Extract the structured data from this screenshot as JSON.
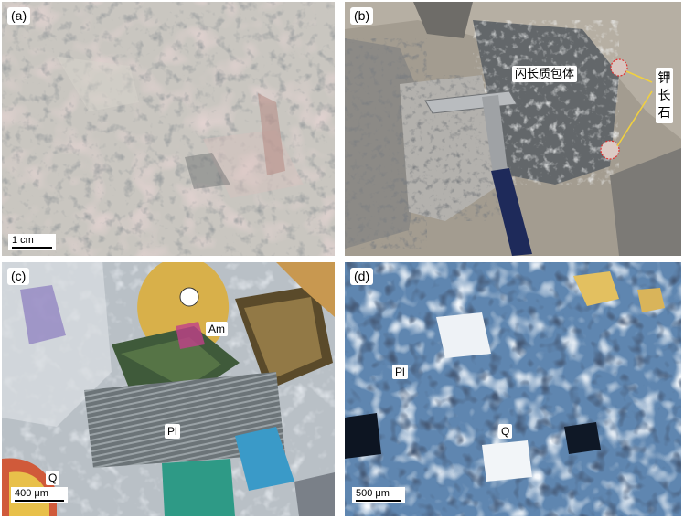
{
  "panels": [
    {
      "label": "(a)",
      "scale": "1 cm"
    },
    {
      "label": "(b)",
      "annotations": [
        "闪长质包体",
        "钾长石"
      ]
    },
    {
      "label": "(c)",
      "minerals": [
        "Am",
        "Pl",
        "Q"
      ],
      "scale": "400 μm"
    },
    {
      "label": "(d)",
      "minerals": [
        "Pl",
        "Q"
      ],
      "scale": "500 μm"
    }
  ],
  "colors": {
    "highlight_circle": "#e03030",
    "leader_line": "#f0d040",
    "hammer_handle": "#1e2a5a"
  }
}
